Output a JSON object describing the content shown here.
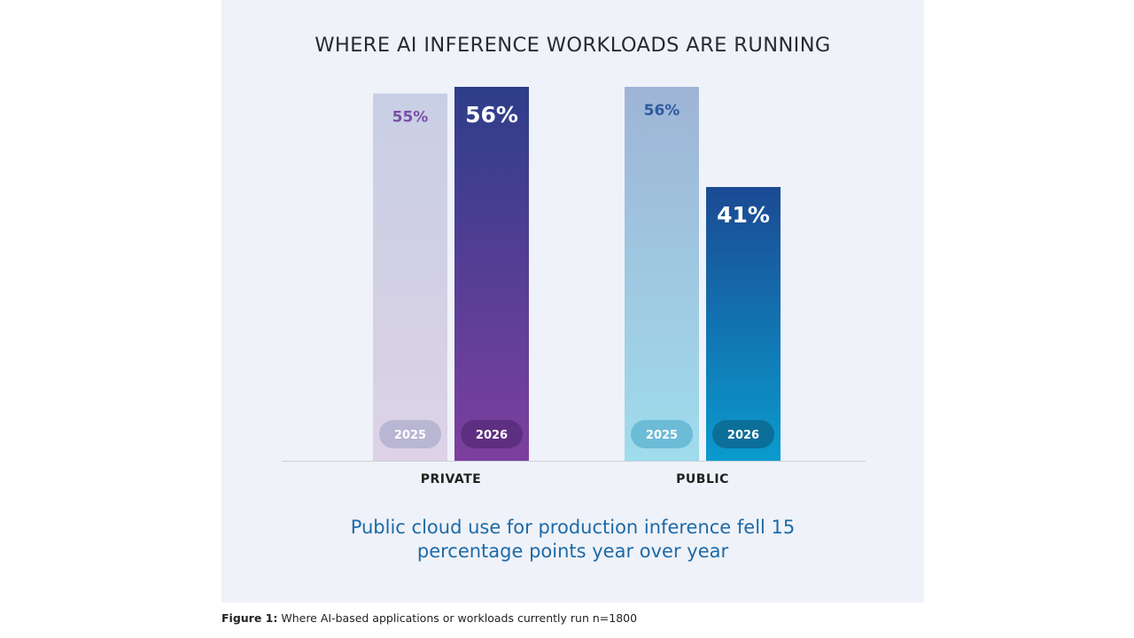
{
  "chart_data": {
    "type": "bar",
    "title": "WHERE AI INFERENCE WORKLOADS ARE RUNNING",
    "categories": [
      "PRIVATE",
      "PUBLIC"
    ],
    "series": [
      {
        "name": "2025",
        "values": [
          55,
          56
        ]
      },
      {
        "name": "2026",
        "values": [
          56,
          41
        ]
      }
    ],
    "data_labels": [
      [
        "55%",
        "56%"
      ],
      [
        "56%",
        "41%"
      ]
    ],
    "ylim": [
      0,
      56
    ],
    "grid": false,
    "legend": "year pills inside bars"
  },
  "subtitle_line1": "Public cloud use for production inference fell 15",
  "subtitle_line2": "percentage points year over year",
  "caption": {
    "label": "Figure 1:",
    "text": " Where AI-based applications or workloads currently run n=1800"
  },
  "colors": {
    "panel_bg": "#eff2f8",
    "private_2025": [
      "#c8cfe4",
      "#ddd2e6"
    ],
    "private_2026": [
      "#2e3e8a",
      "#7d3f9f"
    ],
    "public_2025": [
      "#9fb4d6",
      "#9fdcec"
    ],
    "public_2026": [
      "#1b4a93",
      "#0a9bce"
    ],
    "label_private_2025": "#7a4ea8",
    "label_public_2025": "#2c5a9e"
  }
}
